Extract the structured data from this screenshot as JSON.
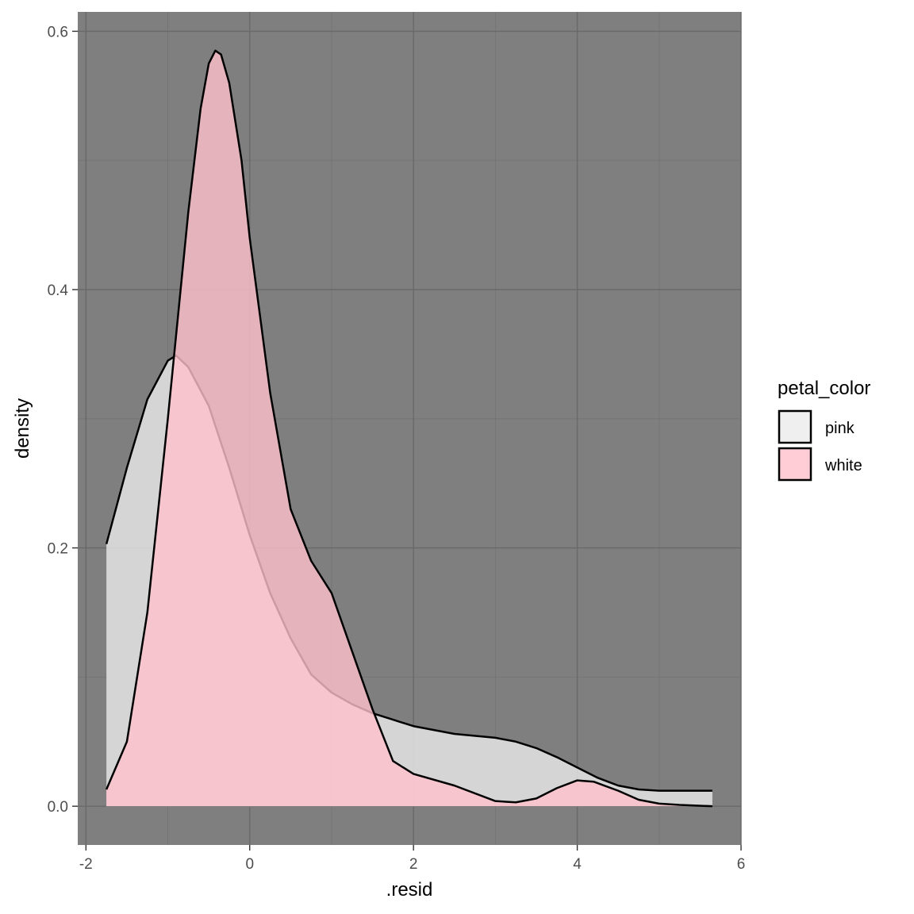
{
  "chart_data": {
    "type": "area",
    "subtype": "density",
    "title": "",
    "xlabel": ".resid",
    "ylabel": "density",
    "xlim": [
      -2.1,
      6.0
    ],
    "ylim": [
      -0.03,
      0.615
    ],
    "x_ticks": [
      -2,
      0,
      2,
      4,
      6
    ],
    "x_tick_labels": [
      "-2",
      "0",
      "2",
      "4",
      "6"
    ],
    "y_ticks": [
      0.0,
      0.2,
      0.4,
      0.6
    ],
    "y_tick_labels": [
      "0.0",
      "0.2",
      "0.4",
      "0.6"
    ],
    "grid": true,
    "panel_background": "#7f7f7f",
    "legend": {
      "title": "petal_color",
      "placement": "right",
      "entries": [
        "pink",
        "white"
      ]
    },
    "series": [
      {
        "name": "pink",
        "fill": "#ebebeb",
        "x": [
          -1.75,
          -1.5,
          -1.25,
          -1.0,
          -0.9,
          -0.75,
          -0.5,
          -0.25,
          0.0,
          0.25,
          0.5,
          0.75,
          1.0,
          1.25,
          1.5,
          1.75,
          2.0,
          2.5,
          3.0,
          3.25,
          3.5,
          3.75,
          4.0,
          4.25,
          4.5,
          4.75,
          5.0,
          5.3,
          5.65
        ],
        "y": [
          0.203,
          0.262,
          0.315,
          0.345,
          0.349,
          0.34,
          0.31,
          0.262,
          0.21,
          0.165,
          0.13,
          0.102,
          0.088,
          0.079,
          0.072,
          0.067,
          0.062,
          0.056,
          0.053,
          0.05,
          0.045,
          0.038,
          0.03,
          0.022,
          0.016,
          0.013,
          0.012,
          0.012,
          0.012
        ]
      },
      {
        "name": "white",
        "fill": "#ffc0cb",
        "x": [
          -1.75,
          -1.5,
          -1.25,
          -1.0,
          -0.75,
          -0.6,
          -0.5,
          -0.42,
          -0.35,
          -0.25,
          -0.1,
          0.0,
          0.25,
          0.5,
          0.75,
          1.0,
          1.25,
          1.5,
          1.75,
          2.0,
          2.5,
          3.0,
          3.25,
          3.5,
          3.75,
          4.0,
          4.2,
          4.5,
          4.75,
          5.0,
          5.25,
          5.65
        ],
        "y": [
          0.013,
          0.05,
          0.15,
          0.3,
          0.46,
          0.54,
          0.575,
          0.585,
          0.582,
          0.56,
          0.5,
          0.44,
          0.32,
          0.23,
          0.19,
          0.165,
          0.12,
          0.075,
          0.035,
          0.025,
          0.016,
          0.004,
          0.003,
          0.006,
          0.014,
          0.02,
          0.019,
          0.012,
          0.005,
          0.002,
          0.001,
          0.0
        ]
      }
    ]
  }
}
